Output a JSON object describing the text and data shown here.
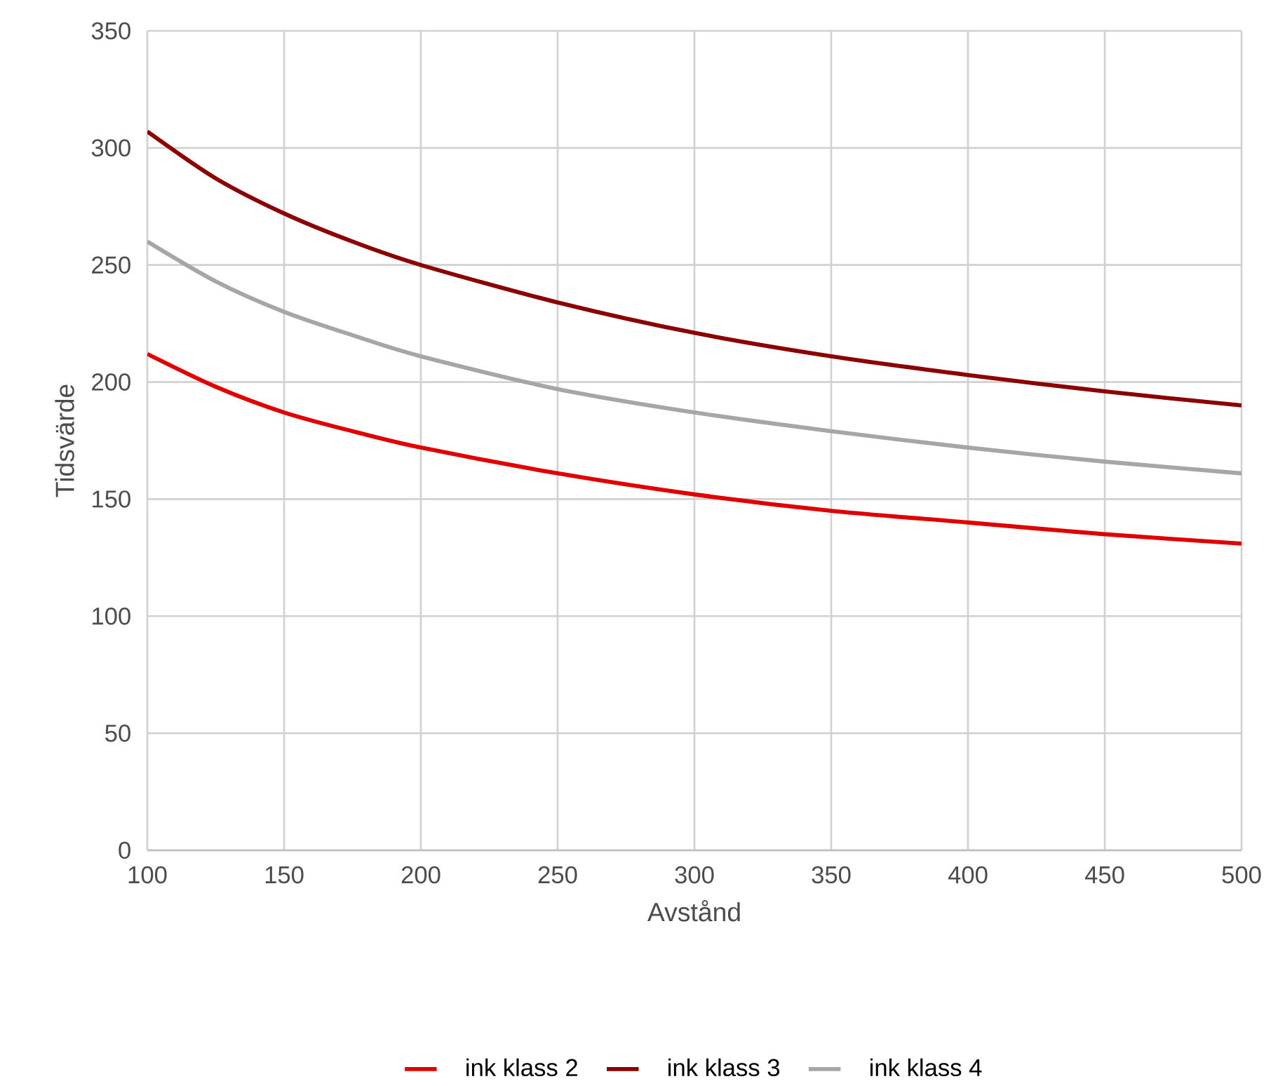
{
  "chart_data": {
    "type": "line",
    "xlabel": "Avstånd",
    "ylabel": "Tidsvärde",
    "x": [
      100,
      125,
      150,
      175,
      200,
      250,
      300,
      350,
      400,
      450,
      500
    ],
    "series": [
      {
        "name": "ink klass 2",
        "color": "#e00000",
        "values": [
          212,
          198,
          187,
          179,
          172,
          161,
          152,
          145,
          140,
          135,
          131
        ]
      },
      {
        "name": "ink klass 3",
        "color": "#8b0000",
        "values": [
          307,
          287,
          272,
          260,
          250,
          234,
          221,
          211,
          203,
          196,
          190
        ]
      },
      {
        "name": "ink klass 4",
        "color": "#a6a6a6",
        "values": [
          260,
          243,
          230,
          220,
          211,
          197,
          187,
          179,
          172,
          166,
          161
        ]
      }
    ],
    "xlim": [
      100,
      500
    ],
    "ylim": [
      0,
      350
    ],
    "xticks": [
      100,
      150,
      200,
      250,
      300,
      350,
      400,
      450,
      500
    ],
    "yticks": [
      0,
      50,
      100,
      150,
      200,
      250,
      300,
      350
    ],
    "grid": true,
    "legend": "bottom"
  }
}
